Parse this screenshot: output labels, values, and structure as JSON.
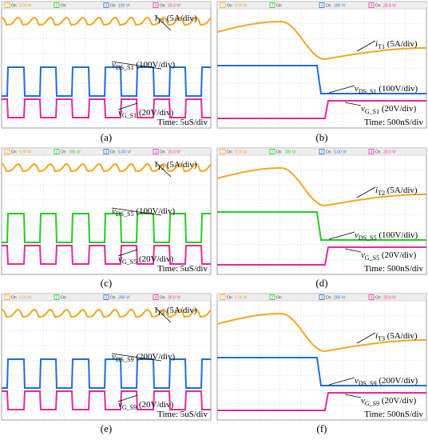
{
  "panels": [
    {
      "label": "(a)",
      "time": "Time: 5uS/div",
      "kind": "switching",
      "mid_color": "#1f6fd6",
      "channels": [
        {
          "num": "1",
          "state": "On",
          "scale": "5.00 A/"
        },
        {
          "num": "2",
          "state": "On"
        },
        {
          "num": "3",
          "state": "On",
          "scale": "100 V/"
        },
        {
          "num": "4",
          "state": "On",
          "scale": "20.0 V/"
        }
      ],
      "traces": [
        {
          "symbol": "i",
          "sub": "T1",
          "scale": " (5A/div)"
        },
        {
          "symbol": "v",
          "sub": "DS_S1",
          "scale": " (100V/div)"
        },
        {
          "symbol": "v",
          "sub": "G_S1",
          "scale": " (20V/div)"
        }
      ]
    },
    {
      "label": "(b)",
      "time": "Time: 500nS/div",
      "kind": "transient",
      "mid_color": "#1f6fd6",
      "channels": [
        {
          "num": "1",
          "state": "On",
          "scale": "5.00 A/"
        },
        {
          "num": "2",
          "state": "On"
        },
        {
          "num": "3",
          "state": "On",
          "scale": "100 V/"
        },
        {
          "num": "4",
          "state": "On",
          "scale": "20.0 V/"
        }
      ],
      "traces": [
        {
          "symbol": "i",
          "sub": "T1",
          "scale": " (5A/div)"
        },
        {
          "symbol": "v",
          "sub": "DS_S1",
          "scale": " (100V/div)"
        },
        {
          "symbol": "v",
          "sub": "G_S1",
          "scale": " (20V/div)"
        }
      ]
    },
    {
      "label": "(c)",
      "time": "Time: 5uS/div",
      "kind": "switching",
      "mid_color": "#22cc22",
      "channels": [
        {
          "num": "1",
          "state": "On",
          "scale": "5.00 A/"
        },
        {
          "num": "2",
          "state": "On",
          "scale": "100 V/"
        },
        {
          "num": "3",
          "state": "On",
          "scale": "5.00 V/"
        },
        {
          "num": "4",
          "state": "On",
          "scale": "20.0 V/"
        }
      ],
      "traces": [
        {
          "symbol": "i",
          "sub": "T2",
          "scale": " (5A/div)"
        },
        {
          "symbol": "v",
          "sub": "DS_S5",
          "scale": " (100V/div)"
        },
        {
          "symbol": "v",
          "sub": "G_S5",
          "scale": " (20V/div)"
        }
      ]
    },
    {
      "label": "(d)",
      "time": "Time: 500nS/div",
      "kind": "transient",
      "mid_color": "#22cc22",
      "channels": [
        {
          "num": "1",
          "state": "On",
          "scale": "5.00 A/"
        },
        {
          "num": "2",
          "state": "On",
          "scale": "100 V/"
        },
        {
          "num": "3",
          "state": "On",
          "scale": "5.00 V/"
        },
        {
          "num": "4",
          "state": "On",
          "scale": "20.0 V/"
        }
      ],
      "traces": [
        {
          "symbol": "i",
          "sub": "T2",
          "scale": " (5A/div)"
        },
        {
          "symbol": "v",
          "sub": "DS_S5",
          "scale": " (100V/div)"
        },
        {
          "symbol": "v",
          "sub": "G_S5",
          "scale": " (20V/div)"
        }
      ]
    },
    {
      "label": "(e)",
      "time": "Time: 5uS/div",
      "kind": "switching",
      "mid_color": "#1f6fd6",
      "channels": [
        {
          "num": "1",
          "state": "On",
          "scale": "5.00 A/"
        },
        {
          "num": "2",
          "state": "On"
        },
        {
          "num": "3",
          "state": "On",
          "scale": "200 V/"
        },
        {
          "num": "4",
          "state": "On",
          "scale": "20.0 V/"
        }
      ],
      "traces": [
        {
          "symbol": "i",
          "sub": "T3",
          "scale": " (5A/div)"
        },
        {
          "symbol": "v",
          "sub": "DS_S9",
          "scale": " (200V/div)"
        },
        {
          "symbol": "v",
          "sub": "G_S9",
          "scale": " (20V/div)"
        }
      ]
    },
    {
      "label": "(f)",
      "time": "Time: 500nS/div",
      "kind": "transient",
      "mid_color": "#1f6fd6",
      "channels": [
        {
          "num": "1",
          "state": "On",
          "scale": "5.00 A/"
        },
        {
          "num": "2",
          "state": "On"
        },
        {
          "num": "3",
          "state": "On",
          "scale": "200 V/"
        },
        {
          "num": "4",
          "state": "On",
          "scale": "20.0 V/"
        }
      ],
      "traces": [
        {
          "symbol": "i",
          "sub": "T3",
          "scale": " (5A/div)"
        },
        {
          "symbol": "v",
          "sub": "DS_S9",
          "scale": " (200V/div)"
        },
        {
          "symbol": "v",
          "sub": "G_S9",
          "scale": " (20V/div)"
        }
      ]
    }
  ]
}
